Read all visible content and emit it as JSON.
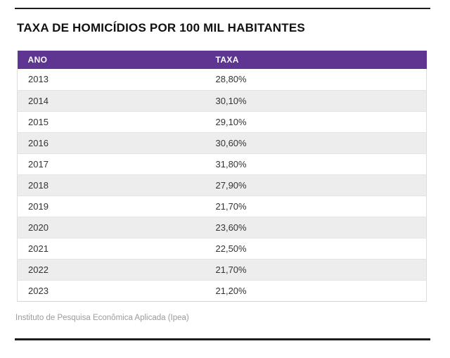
{
  "page": {
    "title": "TAXA DE HOMICÍDIOS POR 100 MIL HABITANTES",
    "source": "Instituto de Pesquisa Econômica Aplicada (Ipea)"
  },
  "table": {
    "columns": [
      "ANO",
      "TAXA"
    ],
    "rows": [
      {
        "ano": "2013",
        "taxa": "28,80%"
      },
      {
        "ano": "2014",
        "taxa": "30,10%"
      },
      {
        "ano": "2015",
        "taxa": "29,10%"
      },
      {
        "ano": "2016",
        "taxa": "30,60%"
      },
      {
        "ano": "2017",
        "taxa": "31,80%"
      },
      {
        "ano": "2018",
        "taxa": "27,90%"
      },
      {
        "ano": "2019",
        "taxa": "21,70%"
      },
      {
        "ano": "2020",
        "taxa": "23,60%"
      },
      {
        "ano": "2021",
        "taxa": "22,50%"
      },
      {
        "ano": "2022",
        "taxa": "21,70%"
      },
      {
        "ano": "2023",
        "taxa": "21,20%"
      }
    ]
  },
  "chart_data": {
    "type": "table",
    "title": "TAXA DE HOMICÍDIOS POR 100 MIL HABITANTES",
    "columns": [
      "ANO",
      "TAXA"
    ],
    "categories": [
      "2013",
      "2014",
      "2015",
      "2016",
      "2017",
      "2018",
      "2019",
      "2020",
      "2021",
      "2022",
      "2023"
    ],
    "values": [
      28.8,
      30.1,
      29.1,
      30.6,
      31.8,
      27.9,
      21.7,
      23.6,
      22.5,
      21.7,
      21.2
    ],
    "value_display": [
      "28,80%",
      "30,10%",
      "29,10%",
      "30,60%",
      "31,80%",
      "27,90%",
      "21,70%",
      "23,60%",
      "22,50%",
      "21,70%",
      "21,20%"
    ],
    "source": "Instituto de Pesquisa Econômica Aplicada (Ipea)"
  },
  "colors": {
    "header_bg": "#5e3591",
    "header_text": "#ffffff",
    "row_alt_bg": "#ededed",
    "row_text": "#333333",
    "rule": "#1c1c1c",
    "table_border": "#dcdcdc",
    "source_text": "#9b9b9b"
  }
}
